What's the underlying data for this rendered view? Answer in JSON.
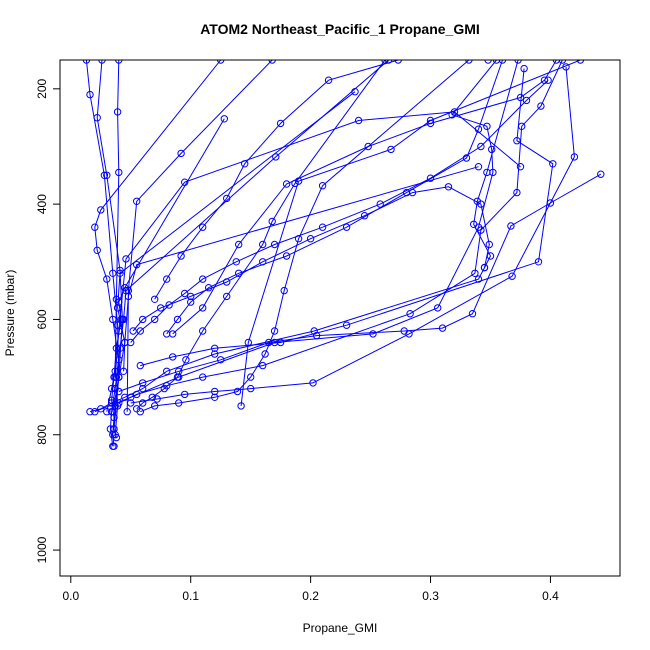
{
  "chart_data": {
    "type": "line",
    "title": "ATOM2 Northeast_Pacific_1 Propane_GMI",
    "xlabel": "Propane_GMI",
    "ylabel": "Pressure (mbar)",
    "xlim": [
      -0.009,
      0.458
    ],
    "ylim": [
      1045,
      150
    ],
    "y_reversed": true,
    "grid": false,
    "series_color": "#0000ff",
    "marker": "open-circle",
    "x_ticks": [
      0.0,
      0.1,
      0.2,
      0.3,
      0.4
    ],
    "x_tick_labels": [
      "0.0",
      "0.1",
      "0.2",
      "0.3",
      "0.4"
    ],
    "y_ticks": [
      200,
      400,
      600,
      800,
      1000
    ],
    "y_tick_labels": [
      "200",
      "400",
      "600",
      "800",
      "1000"
    ],
    "series": [
      {
        "x": [
          0.125,
          0.025,
          0.02,
          0.022,
          0.03,
          0.035,
          0.04,
          0.037,
          0.034,
          0.033,
          0.035
        ],
        "y": [
          150,
          410,
          440,
          480,
          530,
          600,
          670,
          720,
          760,
          790,
          820
        ]
      },
      {
        "x": [
          0.128,
          0.045,
          0.04,
          0.042,
          0.038,
          0.036,
          0.034,
          0.036,
          0.035,
          0.036
        ],
        "y": [
          252,
          545,
          570,
          600,
          650,
          700,
          740,
          770,
          800,
          820
        ]
      },
      {
        "x": [
          0.237,
          0.041,
          0.039,
          0.045,
          0.04,
          0.037,
          0.036,
          0.038
        ],
        "y": [
          205,
          520,
          580,
          640,
          700,
          750,
          790,
          805
        ]
      },
      {
        "x": [
          0.265,
          0.171,
          0.046,
          0.044,
          0.041,
          0.038,
          0.039,
          0.037
        ],
        "y": [
          150,
          318,
          550,
          600,
          650,
          700,
          750,
          800
        ]
      },
      {
        "x": [
          0.013,
          0.016,
          0.028,
          0.035,
          0.039,
          0.04,
          0.036
        ],
        "y": [
          150,
          210,
          350,
          520,
          610,
          700,
          790
        ]
      },
      {
        "x": [
          0.026,
          0.022,
          0.03,
          0.041,
          0.043,
          0.04,
          0.035
        ],
        "y": [
          150,
          250,
          350,
          515,
          600,
          700,
          760
        ]
      },
      {
        "x": [
          0.04,
          0.039,
          0.04,
          0.038,
          0.037,
          0.034,
          0.03
        ],
        "y": [
          150,
          240,
          345,
          565,
          690,
          720,
          760
        ]
      },
      {
        "x": [
          0.375,
          0.32,
          0.24,
          0.095,
          0.046,
          0.04,
          0.037
        ],
        "y": [
          335,
          240,
          255,
          362,
          495,
          620,
          700
        ]
      },
      {
        "x": [
          0.34,
          0.055,
          0.048,
          0.045,
          0.044
        ],
        "y": [
          335,
          505,
          560,
          640,
          690
        ]
      },
      {
        "x": [
          0.168,
          0.092,
          0.055,
          0.048,
          0.047
        ],
        "y": [
          150,
          312,
          395,
          550,
          760
        ]
      },
      {
        "x": [
          0.373,
          0.347,
          0.339,
          0.336,
          0.35,
          0.345,
          0.34,
          0.203,
          0.12,
          0.08,
          0.06,
          0.045,
          0.034,
          0.025,
          0.016
        ],
        "y": [
          150,
          345,
          395,
          435,
          490,
          510,
          530,
          620,
          660,
          690,
          720,
          735,
          745,
          755,
          760
        ]
      },
      {
        "x": [
          0.355,
          0.318,
          0.347,
          0.351,
          0.352,
          0.34,
          0.306,
          0.252,
          0.17,
          0.09,
          0.05,
          0.02
        ],
        "y": [
          150,
          245,
          265,
          305,
          345,
          440,
          580,
          625,
          640,
          700,
          735,
          760
        ]
      },
      {
        "x": [
          0.41,
          0.392,
          0.376,
          0.372,
          0.342,
          0.337,
          0.283,
          0.16,
          0.11,
          0.08,
          0.055,
          0.04
        ],
        "y": [
          150,
          230,
          265,
          380,
          445,
          520,
          590,
          680,
          700,
          715,
          730,
          745
        ]
      },
      {
        "x": [
          0.378,
          0.372,
          0.402,
          0.39,
          0.23,
          0.175,
          0.12,
          0.085,
          0.058
        ],
        "y": [
          165,
          290,
          330,
          500,
          610,
          640,
          650,
          665,
          680
        ]
      },
      {
        "x": [
          0.413,
          0.42,
          0.368,
          0.282,
          0.202,
          0.15,
          0.12,
          0.095,
          0.072,
          0.05
        ],
        "y": [
          162,
          318,
          525,
          625,
          710,
          720,
          725,
          730,
          738,
          745
        ]
      },
      {
        "x": [
          0.442,
          0.4,
          0.367,
          0.335,
          0.31,
          0.278,
          0.205,
          0.165,
          0.125,
          0.09,
          0.06,
          0.04
        ],
        "y": [
          348,
          398,
          438,
          590,
          615,
          620,
          628,
          640,
          670,
          690,
          710,
          725
        ]
      },
      {
        "x": [
          0.425,
          0.3,
          0.267,
          0.19,
          0.148,
          0.142
        ],
        "y": [
          150,
          255,
          305,
          360,
          640,
          750
        ]
      },
      {
        "x": [
          0.405,
          0.395,
          0.375,
          0.3,
          0.248,
          0.18,
          0.14,
          0.11,
          0.085
        ],
        "y": [
          150,
          185,
          215,
          260,
          300,
          365,
          470,
          580,
          625
        ]
      },
      {
        "x": [
          0.262,
          0.187,
          0.168,
          0.16,
          0.13,
          0.11,
          0.096,
          0.089,
          0.078,
          0.068,
          0.06,
          0.055
        ],
        "y": [
          150,
          364,
          430,
          470,
          560,
          620,
          670,
          700,
          720,
          735,
          745,
          755
        ]
      },
      {
        "x": [
          0.332,
          0.21,
          0.19,
          0.178,
          0.17,
          0.162,
          0.15,
          0.139,
          0.12,
          0.09,
          0.07,
          0.058
        ],
        "y": [
          150,
          368,
          460,
          550,
          620,
          660,
          700,
          725,
          735,
          745,
          750,
          760
        ]
      },
      {
        "x": [
          0.348,
          0.273,
          0.215,
          0.175,
          0.145,
          0.13,
          0.11,
          0.092,
          0.08,
          0.07
        ],
        "y": [
          150,
          150,
          185,
          260,
          330,
          390,
          440,
          490,
          530,
          565
        ]
      },
      {
        "x": [
          0.36,
          0.34,
          0.33,
          0.28,
          0.23,
          0.18,
          0.14,
          0.115,
          0.1,
          0.089,
          0.08
        ],
        "y": [
          150,
          270,
          320,
          380,
          440,
          490,
          520,
          545,
          570,
          600,
          625
        ]
      },
      {
        "x": [
          0.345,
          0.349,
          0.342,
          0.315,
          0.285,
          0.245,
          0.2,
          0.16,
          0.13,
          0.1,
          0.075,
          0.06,
          0.052
        ],
        "y": [
          510,
          470,
          400,
          370,
          380,
          420,
          460,
          500,
          535,
          560,
          580,
          600,
          620
        ]
      },
      {
        "x": [
          0.398,
          0.38,
          0.342,
          0.3,
          0.258,
          0.21,
          0.17,
          0.138,
          0.11,
          0.095,
          0.082,
          0.07,
          0.058,
          0.05
        ],
        "y": [
          185,
          220,
          300,
          355,
          400,
          440,
          470,
          500,
          530,
          555,
          575,
          600,
          620,
          640
        ]
      }
    ]
  }
}
